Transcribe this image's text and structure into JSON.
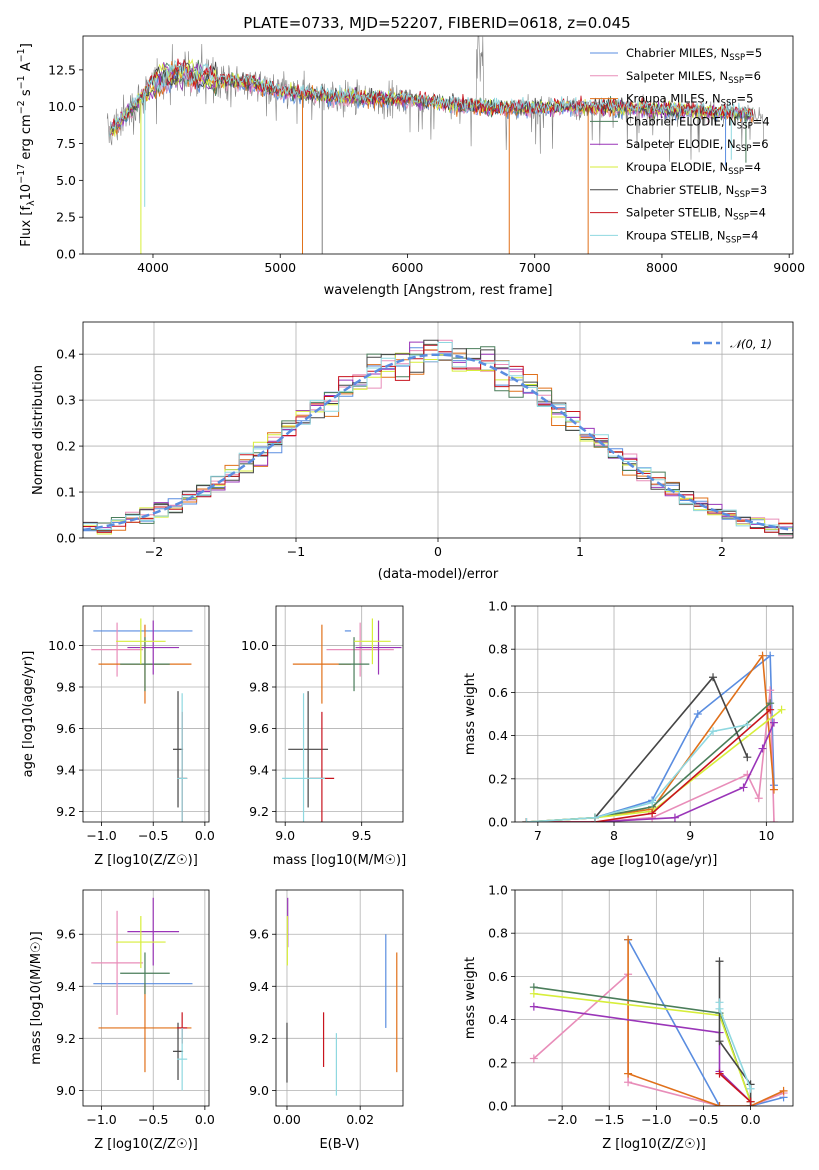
{
  "figure": {
    "title": "PLATE=0733, MJD=52207, FIBERID=0618, z=0.045"
  },
  "palette": {
    "Chabrier MILES": "#5a8de0",
    "Salpeter MILES": "#e88db9",
    "Kroupa MILES": "#e0701a",
    "Chabrier ELODIE": "#4a7d5a",
    "Salpeter ELODIE": "#9a35b8",
    "Kroupa ELODIE": "#d7ee3a",
    "Chabrier STELIB": "#454545",
    "Salpeter STELIB": "#c8141e",
    "Kroupa STELIB": "#8fd8e0"
  },
  "chart_data": [
    {
      "id": "spectrum",
      "type": "line",
      "xlabel": "wavelength [Angstrom, rest frame]",
      "ylabel": "Flux [f_λ 10^-17 erg cm^-2 s^-1 A^-1]",
      "xlim": [
        3450,
        9030
      ],
      "ylim": [
        0,
        14.8
      ],
      "xticks": [
        4000,
        5000,
        6000,
        7000,
        8000,
        9000
      ],
      "yticks": [
        0.0,
        2.5,
        5.0,
        7.5,
        10.0,
        12.5
      ],
      "grid": false,
      "legend": [
        {
          "name": "Chabrier MILES",
          "nssp": 5
        },
        {
          "name": "Salpeter MILES",
          "nssp": 6
        },
        {
          "name": "Kroupa MILES",
          "nssp": 5
        },
        {
          "name": "Chabrier ELODIE",
          "nssp": 4
        },
        {
          "name": "Salpeter ELODIE",
          "nssp": 6
        },
        {
          "name": "Kroupa ELODIE",
          "nssp": 4
        },
        {
          "name": "Chabrier STELIB",
          "nssp": 3
        },
        {
          "name": "Salpeter STELIB",
          "nssp": 4
        },
        {
          "name": "Kroupa STELIB",
          "nssp": 4
        }
      ],
      "legend_position": "top-right",
      "continuum": {
        "x": [
          3650,
          3800,
          3950,
          4100,
          4300,
          4500,
          4800,
          5000,
          5300,
          5600,
          6000,
          6300,
          6600,
          6800,
          7000,
          7200,
          7500,
          7800,
          8000,
          8300,
          8500,
          8700,
          8800
        ],
        "y": [
          8.2,
          9.5,
          11.0,
          12.2,
          12.2,
          11.8,
          11.6,
          11.0,
          10.8,
          10.6,
          10.5,
          10.2,
          10.0,
          9.9,
          9.9,
          10.0,
          10.0,
          9.9,
          9.8,
          9.7,
          9.6,
          9.5,
          9.2
        ]
      },
      "dips": [
        {
          "x": 3905,
          "y": 0.0
        },
        {
          "x": 3935,
          "y": 3.2
        },
        {
          "x": 5175,
          "y": 0.0
        },
        {
          "x": 5330,
          "y": 0.0
        },
        {
          "x": 6800,
          "y": 0.0
        },
        {
          "x": 7420,
          "y": 0.0
        },
        {
          "x": 8500,
          "y": 6.0
        },
        {
          "x": 8545,
          "y": 6.4
        },
        {
          "x": 8660,
          "y": 6.2
        }
      ]
    },
    {
      "id": "residuals",
      "type": "bar",
      "xlabel": "(data-model)/error",
      "ylabel": "Normed distribution",
      "xlim": [
        -2.5,
        2.5
      ],
      "ylim": [
        0,
        0.47
      ],
      "xticks": [
        -2,
        -1,
        0,
        1,
        2
      ],
      "yticks": [
        0.0,
        0.1,
        0.2,
        0.3,
        0.4
      ],
      "grid": true,
      "legend": [
        "𝒩(0, 1)"
      ],
      "legend_position": "top-right",
      "bin_width": 0.1,
      "bin_start": -2.5
    },
    {
      "id": "age-vs-Z",
      "type": "scatter",
      "xlabel": "Z [log10(Z/Z☉)]",
      "ylabel": "age [log10(age/yr)]",
      "xlim": [
        -1.18,
        0.04
      ],
      "ylim": [
        9.15,
        10.19
      ],
      "xticks": [
        -1.0,
        -0.5,
        0.0
      ],
      "yticks": [
        9.2,
        9.4,
        9.6,
        9.8,
        10.0
      ],
      "grid": true
    },
    {
      "id": "age-vs-mass",
      "type": "scatter",
      "xlabel": "mass [log10(M/M☉)]",
      "ylabel": "",
      "xlim": [
        8.94,
        9.77
      ],
      "ylim": [
        9.15,
        10.19
      ],
      "xticks": [
        9.0,
        9.5
      ],
      "yticks": [
        9.2,
        9.4,
        9.6,
        9.8,
        10.0
      ],
      "grid": true
    },
    {
      "id": "mass-weight-vs-age",
      "type": "line",
      "xlabel": "age [log10(age/yr)]",
      "ylabel": "mass weight",
      "xlim": [
        6.7,
        10.35
      ],
      "ylim": [
        0,
        1
      ],
      "xticks": [
        7,
        8,
        9,
        10
      ],
      "yticks": [
        0.0,
        0.2,
        0.4,
        0.6,
        0.8,
        1.0
      ],
      "grid": true,
      "series": [
        {
          "name": "Chabrier MILES",
          "x": [
            6.85,
            7.75,
            8.5,
            9.1,
            10.05,
            10.1
          ],
          "y": [
            0.0,
            0.02,
            0.1,
            0.5,
            0.77,
            0.17
          ]
        },
        {
          "name": "Salpeter MILES",
          "x": [
            6.85,
            7.75,
            8.5,
            9.75,
            9.9,
            10.05,
            10.1
          ],
          "y": [
            0.0,
            0.0,
            0.02,
            0.22,
            0.11,
            0.61,
            0.0
          ]
        },
        {
          "name": "Kroupa MILES",
          "x": [
            6.85,
            7.75,
            8.5,
            9.95,
            10.1
          ],
          "y": [
            0.0,
            0.02,
            0.06,
            0.77,
            0.15
          ]
        },
        {
          "name": "Chabrier ELODIE",
          "x": [
            6.85,
            7.75,
            8.5,
            10.05
          ],
          "y": [
            0.0,
            0.02,
            0.07,
            0.55
          ]
        },
        {
          "name": "Salpeter ELODIE",
          "x": [
            6.85,
            7.75,
            8.8,
            9.7,
            9.95,
            10.1
          ],
          "y": [
            0.0,
            0.0,
            0.02,
            0.16,
            0.34,
            0.46
          ]
        },
        {
          "name": "Kroupa ELODIE",
          "x": [
            6.85,
            7.75,
            8.5,
            10.2
          ],
          "y": [
            0.0,
            0.02,
            0.05,
            0.52
          ]
        },
        {
          "name": "Chabrier STELIB",
          "x": [
            7.75,
            9.3,
            9.75
          ],
          "y": [
            0.02,
            0.67,
            0.3
          ]
        },
        {
          "name": "Salpeter STELIB",
          "x": [
            6.85,
            7.75,
            8.5,
            10.05
          ],
          "y": [
            0.0,
            0.0,
            0.04,
            0.52
          ]
        },
        {
          "name": "Kroupa STELIB",
          "x": [
            6.85,
            7.75,
            8.5,
            9.3,
            9.75
          ],
          "y": [
            0.0,
            0.02,
            0.09,
            0.42,
            0.45
          ]
        }
      ]
    },
    {
      "id": "mass-vs-Z",
      "type": "scatter",
      "xlabel": "Z [log10(Z/Z☉)]",
      "ylabel": "mass [log10(M/M☉)]",
      "xlim": [
        -1.18,
        0.04
      ],
      "ylim": [
        8.94,
        9.77
      ],
      "xticks": [
        -1.0,
        -0.5,
        0.0
      ],
      "yticks": [
        9.0,
        9.2,
        9.4,
        9.6
      ],
      "grid": true
    },
    {
      "id": "mass-vs-EBV",
      "type": "scatter",
      "xlabel": "E(B-V)",
      "ylabel": "",
      "xlim": [
        -0.003,
        0.0317
      ],
      "ylim": [
        8.94,
        9.77
      ],
      "xticks": [
        0.0,
        0.02
      ],
      "yticks": [
        9.0,
        9.2,
        9.4,
        9.6
      ],
      "grid": true
    },
    {
      "id": "mass-weight-vs-Z",
      "type": "line",
      "xlabel": "Z [log10(Z/Z☉)]",
      "ylabel": "mass weight",
      "xlim": [
        -2.5,
        0.45
      ],
      "ylim": [
        0,
        1
      ],
      "xticks": [
        -2.0,
        -1.5,
        -1.0,
        -0.5,
        0.0
      ],
      "yticks": [
        0.0,
        0.2,
        0.4,
        0.6,
        0.8,
        1.0
      ],
      "grid": true,
      "series": [
        {
          "name": "Chabrier MILES",
          "x": [
            -1.3,
            -1.3,
            -0.33,
            0.0,
            0.35
          ],
          "y": [
            0.77,
            0.77,
            0.0,
            0.0,
            0.04
          ]
        },
        {
          "name": "Salpeter MILES",
          "x": [
            -2.3,
            -1.3,
            -1.3,
            -0.33,
            0.0,
            0.35
          ],
          "y": [
            0.22,
            0.61,
            0.11,
            0.0,
            0.0,
            0.06
          ]
        },
        {
          "name": "Kroupa MILES",
          "x": [
            -1.3,
            -1.3,
            -0.33,
            0.0,
            0.35
          ],
          "y": [
            0.77,
            0.15,
            0.0,
            0.0,
            0.07
          ]
        },
        {
          "name": "Chabrier ELODIE",
          "x": [
            -2.3,
            -0.33,
            0.0
          ],
          "y": [
            0.55,
            0.43,
            0.02
          ]
        },
        {
          "name": "Salpeter ELODIE",
          "x": [
            -2.3,
            -0.33,
            -0.33,
            0.0
          ],
          "y": [
            0.46,
            0.34,
            0.16,
            0.02
          ]
        },
        {
          "name": "Kroupa ELODIE",
          "x": [
            -2.3,
            -0.33,
            0.0
          ],
          "y": [
            0.52,
            0.42,
            0.02
          ]
        },
        {
          "name": "Chabrier STELIB",
          "x": [
            -0.33,
            -0.33,
            0.0,
            0.0
          ],
          "y": [
            0.67,
            0.3,
            0.1,
            0.0
          ]
        },
        {
          "name": "Salpeter STELIB",
          "x": [
            -0.33,
            0.0
          ],
          "y": [
            0.15,
            0.02
          ]
        },
        {
          "name": "Kroupa STELIB",
          "x": [
            -0.33,
            -0.33,
            0.0
          ],
          "y": [
            0.48,
            0.45,
            0.08
          ]
        }
      ]
    }
  ],
  "ssp_fits": [
    {
      "name": "Chabrier MILES",
      "Z": -0.6,
      "Z_err": 0.48,
      "age": 10.07,
      "age_err": 0.0,
      "mass": 9.41,
      "mass_err": 0.0,
      "ebv": 0.0
    },
    {
      "name": "Salpeter MILES",
      "Z": -0.85,
      "Z_err": 0.25,
      "age": 9.98,
      "age_err": 0.13,
      "mass": 9.49,
      "mass_err": 0.2,
      "ebv": 0.0
    },
    {
      "name": "Kroupa MILES",
      "Z": -0.58,
      "Z_err": 0.45,
      "age": 9.91,
      "age_err": 0.19,
      "mass": 9.24,
      "mass_err": 0.17,
      "ebv": 0.0
    },
    {
      "name": "Chabrier ELODIE",
      "Z": -0.58,
      "Z_err": 0.24,
      "age": 9.91,
      "age_err": 0.13,
      "mass": 9.45,
      "mass_err": 0.08,
      "ebv": 0.0
    },
    {
      "name": "Salpeter ELODIE",
      "Z": -0.5,
      "Z_err": 0.25,
      "age": 9.99,
      "age_err": 0.13,
      "mass": 9.61,
      "mass_err": 0.13,
      "ebv": 0.0
    },
    {
      "name": "Kroupa ELODIE",
      "Z": -0.62,
      "Z_err": 0.24,
      "age": 10.02,
      "age_err": 0.11,
      "mass": 9.57,
      "mass_err": 0.1,
      "ebv": 0.0
    },
    {
      "name": "Chabrier STELIB",
      "Z": -0.26,
      "Z_err": 0.0,
      "age": 9.5,
      "age_err": 0.28,
      "mass": 9.15,
      "mass_err": 0.11,
      "ebv": 0.0
    },
    {
      "name": "Salpeter STELIB",
      "Z": -0.22,
      "Z_err": 0.0,
      "age": 9.36,
      "age_err": 0.32,
      "mass": 9.24,
      "mass_err": 0.06,
      "ebv": 0.01
    },
    {
      "name": "Kroupa STELIB",
      "Z": -0.22,
      "Z_err": 0.0,
      "age": 9.36,
      "age_err": 0.41,
      "mass": 9.12,
      "mass_err": 0.12,
      "ebv": 0.0135
    }
  ],
  "ebv_errors": [
    {
      "name": "Chabrier MILES",
      "ebv": 0.027,
      "mass_lo": 9.24,
      "mass_hi": 9.6
    },
    {
      "name": "Kroupa MILES",
      "ebv": 0.03,
      "mass_lo": 9.07,
      "mass_hi": 9.53
    },
    {
      "name": "Salpeter STELIB",
      "ebv": 0.01,
      "mass_lo": 9.09,
      "mass_hi": 9.3
    },
    {
      "name": "Kroupa STELIB",
      "ebv": 0.0135,
      "mass_lo": 8.98,
      "mass_hi": 9.22
    },
    {
      "name": "Salpeter ELODIE",
      "ebv": 0.0002,
      "mass_lo": 9.55,
      "mass_hi": 9.74
    },
    {
      "name": "Kroupa ELODIE",
      "ebv": 0.0001,
      "mass_lo": 9.48,
      "mass_hi": 9.67
    },
    {
      "name": "Chabrier STELIB",
      "ebv": 0.0,
      "mass_lo": 9.03,
      "mass_hi": 9.26
    }
  ]
}
